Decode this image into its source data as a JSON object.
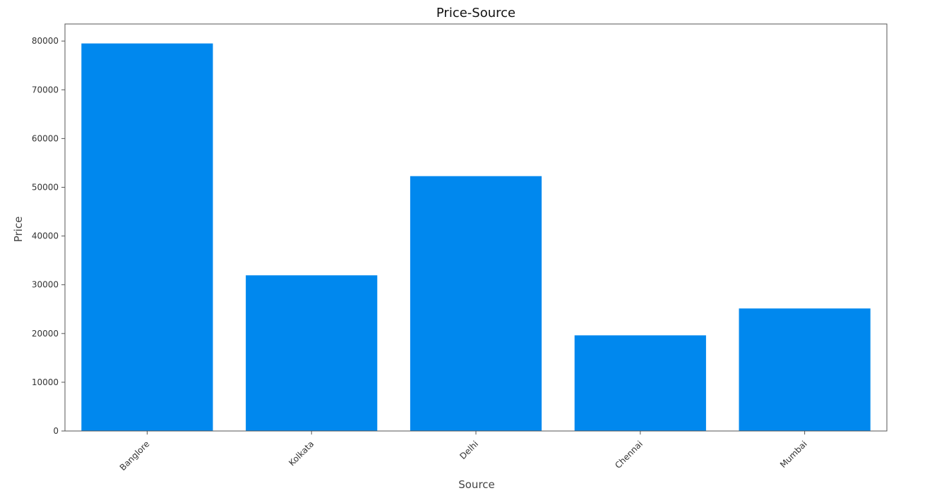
{
  "colors": {
    "bar": "#0088ee",
    "axis": "#555555",
    "background": "#ffffff"
  },
  "chart_data": {
    "type": "bar",
    "title": "Price-Source",
    "xlabel": "Source",
    "ylabel": "Price",
    "categories": [
      "Banglore",
      "Kolkata",
      "Delhi",
      "Chennai",
      "Mumbai"
    ],
    "values": [
      79512,
      31945,
      52285,
      19630,
      25139
    ],
    "ylim": [
      0,
      83500
    ],
    "yticks": [
      0,
      10000,
      20000,
      30000,
      40000,
      50000,
      60000,
      70000,
      80000
    ],
    "grid": false,
    "legend": "none",
    "xtick_rotation": -45
  }
}
